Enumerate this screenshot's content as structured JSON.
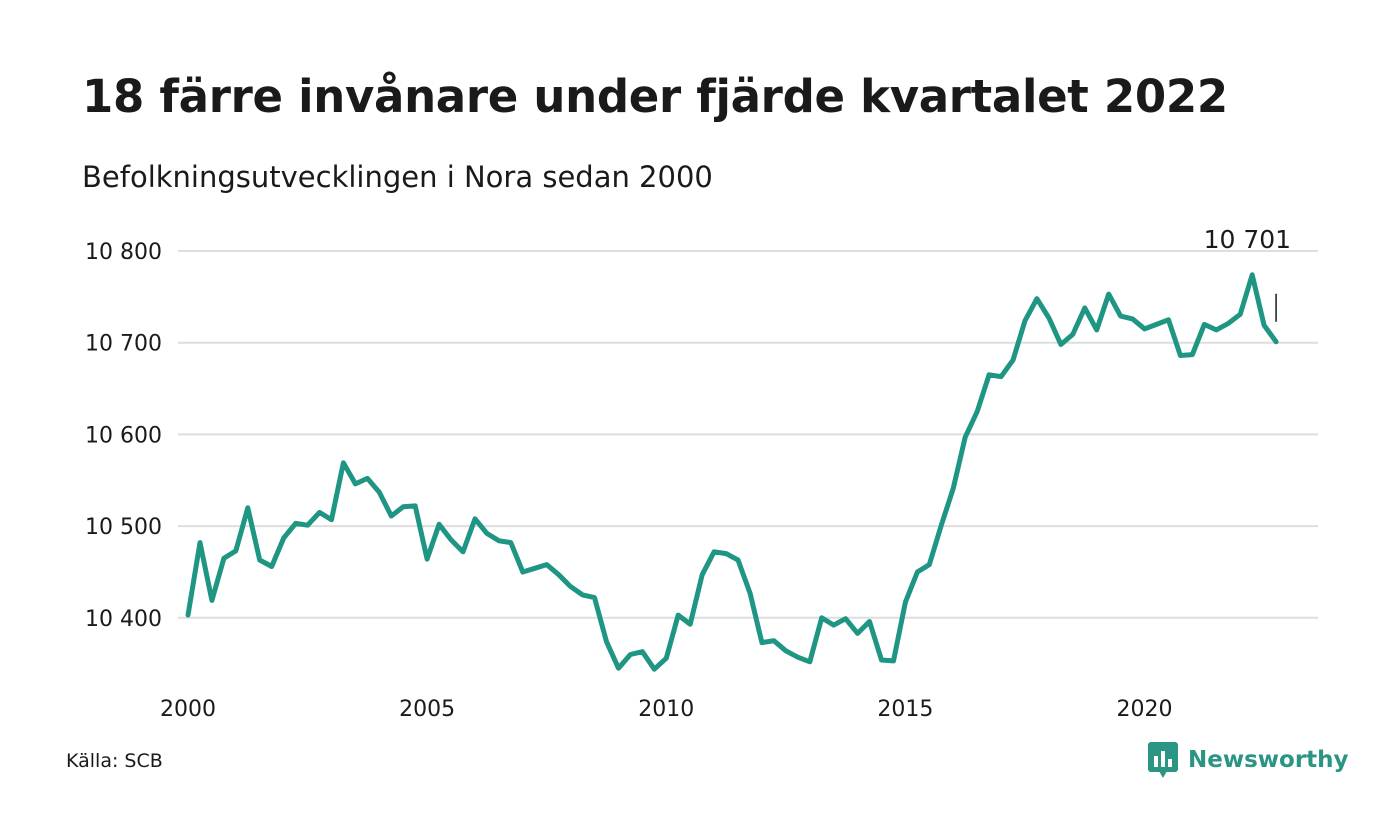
{
  "title": "18 färre invånare under fjärde kvartalet 2022",
  "subtitle": "Befolkningsutvecklingen i Nora sedan 2000",
  "source": "Källa: SCB",
  "brand": {
    "name": "Newsworthy",
    "icon": "bar-chart-speech-bubble-icon",
    "color": "#2a9583"
  },
  "chart_data": {
    "type": "line",
    "title": "18 färre invånare under fjärde kvartalet 2022",
    "subtitle": "Befolkningsutvecklingen i Nora sedan 2000",
    "xlabel": "",
    "ylabel": "",
    "xlim": [
      2000,
      2023.25
    ],
    "ylim": [
      10330,
      10800
    ],
    "grid": true,
    "y_ticks": [
      {
        "value": 10800,
        "label": "10 800"
      },
      {
        "value": 10700,
        "label": "10 700"
      },
      {
        "value": 10600,
        "label": "10 600"
      },
      {
        "value": 10500,
        "label": "10 500"
      },
      {
        "value": 10400,
        "label": "10 400"
      }
    ],
    "x_ticks": [
      {
        "value": 2000,
        "label": "2000"
      },
      {
        "value": 2005,
        "label": "2005"
      },
      {
        "value": 2010,
        "label": "2010"
      },
      {
        "value": 2015,
        "label": "2015"
      },
      {
        "value": 2020,
        "label": "2020"
      }
    ],
    "line_color": "#1f9584",
    "last_label": "10 701",
    "series": [
      {
        "x": [
          2000.0,
          2000.25,
          2000.5,
          2000.75,
          2001.0,
          2001.25,
          2001.5,
          2001.75,
          2002.0,
          2002.25,
          2002.5,
          2002.75,
          2003.0,
          2003.25,
          2003.5,
          2003.75,
          2004.0,
          2004.25,
          2004.5,
          2004.75,
          2005.0,
          2005.25,
          2005.5,
          2005.75,
          2006.0,
          2006.25,
          2006.5,
          2006.75,
          2007.0,
          2007.25,
          2007.5,
          2007.75,
          2008.0,
          2008.25,
          2008.5,
          2008.75,
          2009.0,
          2009.25,
          2009.5,
          2009.75,
          2010.0,
          2010.25,
          2010.5,
          2010.75,
          2011.0,
          2011.25,
          2011.5,
          2011.75,
          2012.0,
          2012.25,
          2012.5,
          2012.75,
          2013.0,
          2013.25,
          2013.5,
          2013.75,
          2014.0,
          2014.25,
          2014.5,
          2014.75,
          2015.0,
          2015.25,
          2015.5,
          2015.75,
          2016.0,
          2016.25,
          2016.5,
          2016.75,
          2017.0,
          2017.25,
          2017.5,
          2017.75,
          2018.0,
          2018.25,
          2018.5,
          2018.75,
          2019.0,
          2019.25,
          2019.5,
          2019.75,
          2020.0,
          2020.25,
          2020.5,
          2020.75,
          2021.0,
          2021.25,
          2021.5,
          2021.75,
          2022.0,
          2022.25,
          2022.5,
          2022.75
        ],
        "values": [
          10403,
          10482,
          10419,
          10465,
          10473,
          10520,
          10463,
          10456,
          10487,
          10503,
          10501,
          10515,
          10507,
          10569,
          10546,
          10552,
          10537,
          10511,
          10521,
          10522,
          10464,
          10502,
          10485,
          10472,
          10508,
          10492,
          10484,
          10482,
          10450,
          10454,
          10458,
          10447,
          10434,
          10425,
          10422,
          10374,
          10345,
          10360,
          10363,
          10344,
          10356,
          10403,
          10393,
          10447,
          10472,
          10470,
          10463,
          10427,
          10373,
          10375,
          10364,
          10357,
          10352,
          10400,
          10392,
          10399,
          10383,
          10396,
          10354,
          10353,
          10417,
          10450,
          10458,
          10501,
          10541,
          10597,
          10625,
          10665,
          10663,
          10681,
          10724,
          10748,
          10727,
          10698,
          10709,
          10738,
          10714,
          10753,
          10729,
          10726,
          10715,
          10720,
          10725,
          10686,
          10687,
          10720,
          10714,
          10721,
          10731,
          10774,
          10719,
          10701
        ]
      }
    ]
  }
}
